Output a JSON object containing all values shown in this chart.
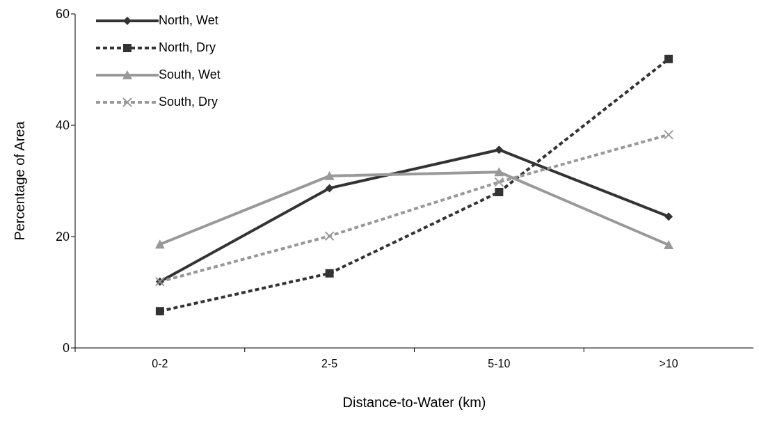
{
  "chart_data": {
    "type": "line",
    "xlabel": "Distance-to-Water (km)",
    "ylabel": "Percentage of Area",
    "categories": [
      "0-2",
      "2-5",
      "5-10",
      ">10"
    ],
    "series": [
      {
        "name": "North, Wet",
        "color": "#333333",
        "marker": "diamond",
        "line_style": "solid",
        "values": [
          11.9,
          28.7,
          35.6,
          23.6
        ]
      },
      {
        "name": "North, Dry",
        "color": "#333333",
        "marker": "square",
        "line_style": "dashed",
        "values": [
          6.6,
          13.4,
          28.0,
          51.9
        ]
      },
      {
        "name": "South, Wet",
        "color": "#999999",
        "marker": "triangle",
        "line_style": "solid",
        "values": [
          18.6,
          30.9,
          31.6,
          18.5
        ]
      },
      {
        "name": "South, Dry",
        "color": "#999999",
        "marker": "cross",
        "line_style": "dashed",
        "values": [
          11.9,
          20.1,
          29.8,
          38.3
        ]
      }
    ],
    "ylim": [
      0,
      60
    ],
    "yticks": [
      0,
      20,
      40,
      60
    ],
    "grid": false,
    "legend": "top left"
  }
}
